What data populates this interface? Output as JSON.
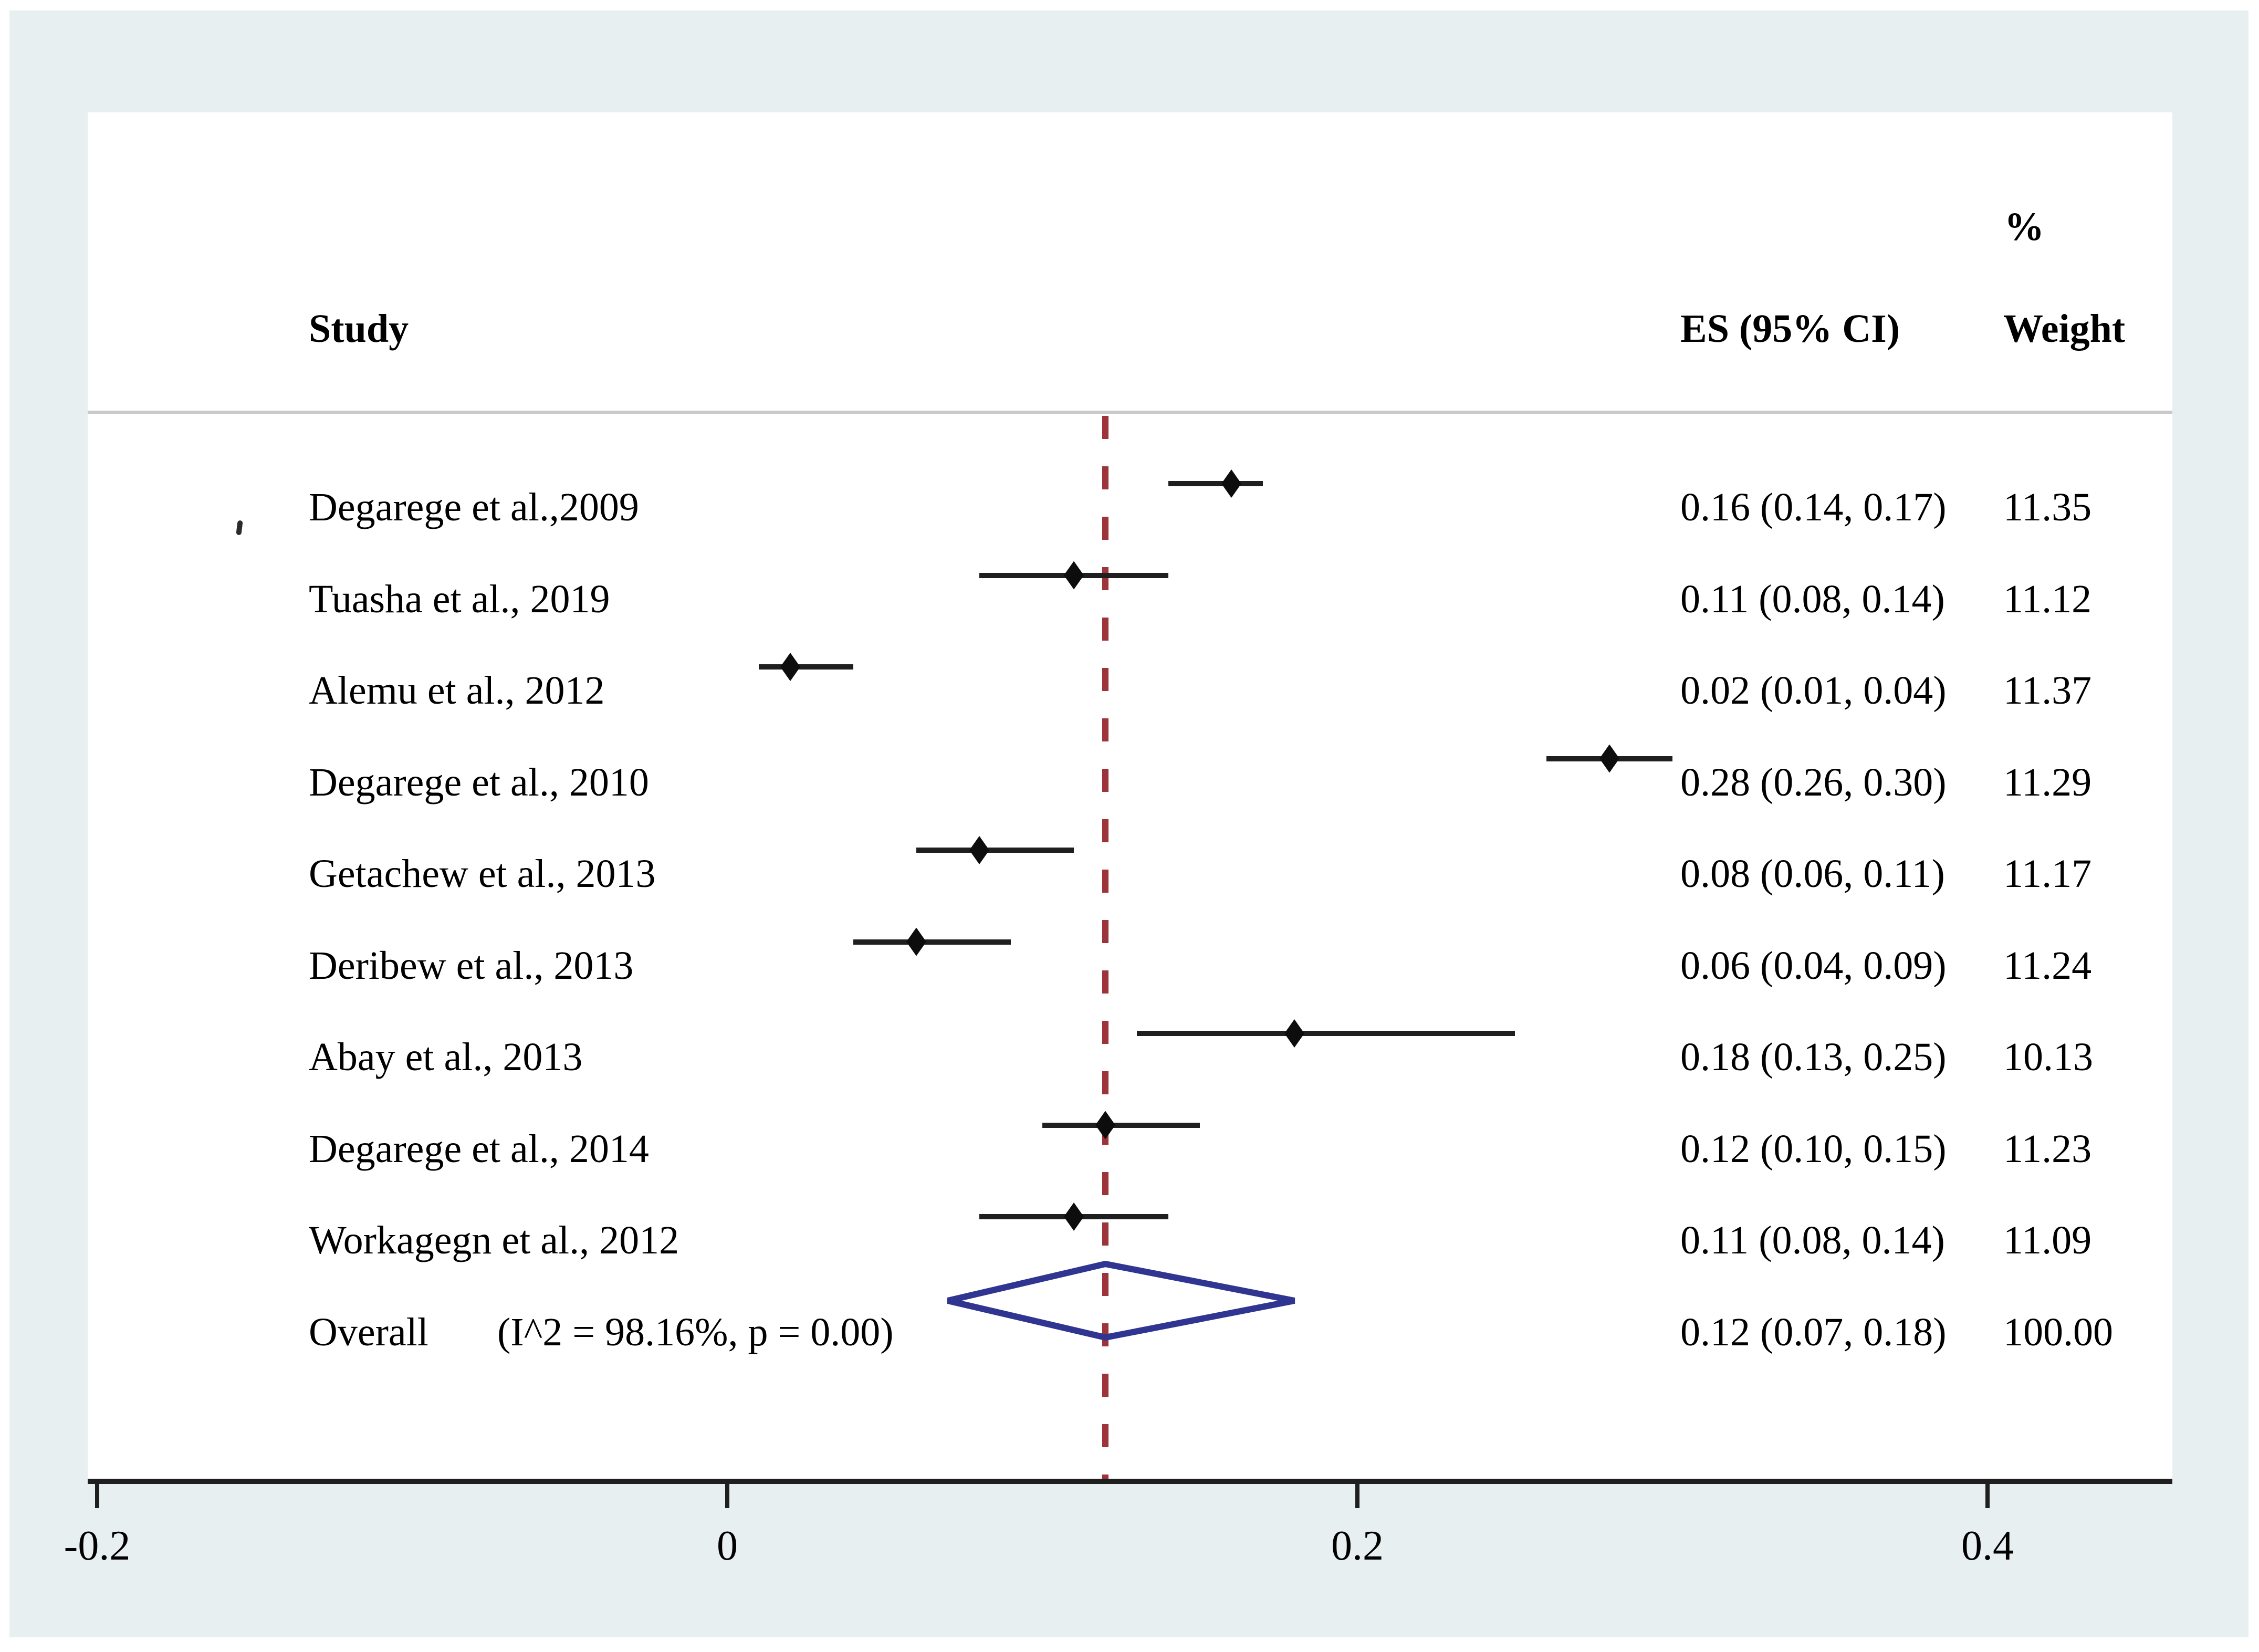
{
  "chart_data": {
    "type": "forest",
    "title": "",
    "columns": {
      "study": "Study",
      "es": "ES (95% CI)",
      "weight_top": "%",
      "weight": "Weight"
    },
    "axis": {
      "xmin": -0.203,
      "xmax": 0.462,
      "grid": false,
      "ticks": [
        {
          "value": -0.2,
          "label": "-0.2"
        },
        {
          "value": 0,
          "label": "0"
        },
        {
          "value": 0.2,
          "label": "0.2"
        },
        {
          "value": 0.4,
          "label": "0.4"
        }
      ]
    },
    "reference_line_value": 0.12,
    "studies": [
      {
        "label": "Degarege et al.,2009",
        "es": 0.16,
        "ci_low": 0.14,
        "ci_high": 0.17,
        "es_ci_text": "0.16 (0.14, 0.17)",
        "weight": "11.35"
      },
      {
        "label": "Tuasha et al., 2019",
        "es": 0.11,
        "ci_low": 0.08,
        "ci_high": 0.14,
        "es_ci_text": "0.11 (0.08, 0.14)",
        "weight": "11.12"
      },
      {
        "label": "Alemu et al., 2012",
        "es": 0.02,
        "ci_low": 0.01,
        "ci_high": 0.04,
        "es_ci_text": "0.02 (0.01, 0.04)",
        "weight": "11.37"
      },
      {
        "label": "Degarege et al., 2010",
        "es": 0.28,
        "ci_low": 0.26,
        "ci_high": 0.3,
        "es_ci_text": "0.28 (0.26, 0.30)",
        "weight": "11.29"
      },
      {
        "label": "Getachew et al., 2013",
        "es": 0.08,
        "ci_low": 0.06,
        "ci_high": 0.11,
        "es_ci_text": "0.08 (0.06, 0.11)",
        "weight": "11.17"
      },
      {
        "label": "Deribew et al., 2013",
        "es": 0.06,
        "ci_low": 0.04,
        "ci_high": 0.09,
        "es_ci_text": "0.06 (0.04, 0.09)",
        "weight": "11.24"
      },
      {
        "label": "Abay et al., 2013",
        "es": 0.18,
        "ci_low": 0.13,
        "ci_high": 0.25,
        "es_ci_text": "0.18 (0.13, 0.25)",
        "weight": "10.13"
      },
      {
        "label": "Degarege et al., 2014",
        "es": 0.12,
        "ci_low": 0.1,
        "ci_high": 0.15,
        "es_ci_text": "0.12 (0.10, 0.15)",
        "weight": "11.23"
      },
      {
        "label": "Workagegn et al., 2012",
        "es": 0.11,
        "ci_low": 0.08,
        "ci_high": 0.14,
        "es_ci_text": "0.11 (0.08, 0.14)",
        "weight": "11.09"
      }
    ],
    "overall": {
      "label": "Overall",
      "heterogeneity_text": "(I^2 = 98.16%, p = 0.00)",
      "es": 0.12,
      "ci_low": 0.07,
      "ci_high": 0.18,
      "es_ci_text": "0.12 (0.07, 0.18)",
      "weight": "100.00"
    },
    "colors": {
      "background": "#e8eff1",
      "panel": "#ffffff",
      "text": "#000000",
      "ci_line": "#1f1f1f",
      "marker": "#0d0d0d",
      "diamond_outline": "#2f3590",
      "reference_line": "#9d343a",
      "divider": "#c9c9c9",
      "axis": "#1f1f1f"
    }
  }
}
